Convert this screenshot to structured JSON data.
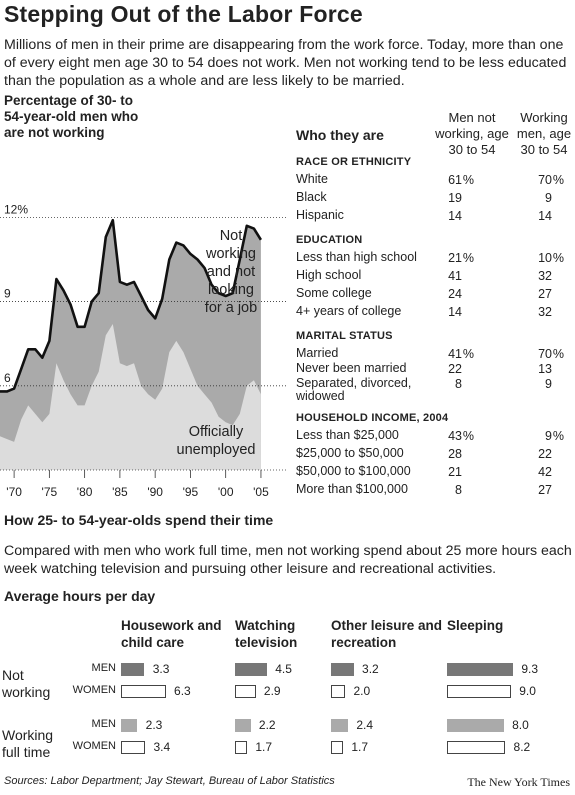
{
  "title": "Stepping Out of the Labor Force",
  "intro": "Millions of men in their prime are disappearing from the work force. Today, more than one of every eight men age 30 to 54 does not work. Men not working tend to be less educated than the population as a whole and are less likely to be married.",
  "chart_data": [
    {
      "type": "area",
      "title": "Percentage of 30- to 54-year-old men who are not working",
      "x_tick_labels": [
        "'70",
        "'75",
        "'80",
        "'85",
        "'90",
        "'95",
        "'00",
        "'05"
      ],
      "y_tick_labels": [
        "6",
        "9",
        "12%"
      ],
      "ylim": [
        3,
        14.4
      ],
      "xlim": [
        1968,
        2006
      ],
      "grid": "dotted horizontal",
      "x": [
        1968,
        1969,
        1970,
        1971,
        1972,
        1973,
        1974,
        1975,
        1976,
        1977,
        1978,
        1979,
        1980,
        1981,
        1982,
        1983,
        1984,
        1985,
        1986,
        1987,
        1988,
        1989,
        1990,
        1991,
        1992,
        1993,
        1994,
        1995,
        1996,
        1997,
        1998,
        1999,
        2000,
        2001,
        2002,
        2003,
        2004,
        2005
      ],
      "series": [
        {
          "name": "Not working and not looking for a job",
          "color": "#aaaaaa",
          "values": [
            5.8,
            5.8,
            5.9,
            6.6,
            7.3,
            7.3,
            7.0,
            7.6,
            9.8,
            9.4,
            8.9,
            8.1,
            8.1,
            9.0,
            9.3,
            11.3,
            11.9,
            9.7,
            9.6,
            9.7,
            9.2,
            8.7,
            8.4,
            9.1,
            10.5,
            11.1,
            11.0,
            10.7,
            10.5,
            10.2,
            9.6,
            9.3,
            9.2,
            9.3,
            10.5,
            11.7,
            11.6,
            11.2
          ]
        },
        {
          "name": "Officially unemployed",
          "color": "#dcdcdc",
          "values": [
            4.2,
            4.1,
            4.0,
            4.8,
            5.3,
            5.0,
            4.7,
            5.0,
            6.8,
            6.2,
            5.7,
            5.3,
            5.3,
            6.0,
            6.5,
            7.8,
            8.2,
            6.8,
            6.7,
            6.8,
            6.0,
            5.7,
            5.5,
            5.9,
            7.2,
            7.6,
            7.2,
            6.6,
            6.0,
            5.7,
            5.4,
            4.9,
            4.7,
            4.6,
            5.0,
            6.0,
            6.2,
            5.7
          ]
        }
      ],
      "area_labels": {
        "not_working": [
          "Not",
          "working",
          "and not",
          "looking",
          "for a job"
        ],
        "unemployed": [
          "Officially",
          "unemployed"
        ]
      }
    },
    {
      "type": "table",
      "title": "Who they are",
      "columns": [
        "Men not working, age 30 to 54",
        "Working men, age 30 to 54"
      ],
      "sections": [
        {
          "heading": "RACE OR ETHNICITY",
          "rows": [
            {
              "label": "White",
              "v1": "61",
              "p1": "%",
              "v2": "70",
              "p2": "%"
            },
            {
              "label": "Black",
              "v1": "19",
              "p1": "",
              "v2": "9",
              "p2": ""
            },
            {
              "label": "Hispanic",
              "v1": "14",
              "p1": "",
              "v2": "14",
              "p2": ""
            }
          ]
        },
        {
          "heading": "EDUCATION",
          "rows": [
            {
              "label": "Less than high school",
              "v1": "21",
              "p1": "%",
              "v2": "10",
              "p2": "%"
            },
            {
              "label": "High school",
              "v1": "41",
              "p1": "",
              "v2": "32",
              "p2": ""
            },
            {
              "label": "Some college",
              "v1": "24",
              "p1": "",
              "v2": "27",
              "p2": ""
            },
            {
              "label": "4+ years of college",
              "v1": "14",
              "p1": "",
              "v2": "32",
              "p2": ""
            }
          ]
        },
        {
          "heading": "MARITAL STATUS",
          "rows": [
            {
              "label": "Married",
              "v1": "41",
              "p1": "%",
              "v2": "70",
              "p2": "%"
            },
            {
              "label": "Never been married",
              "v1": "22",
              "p1": "",
              "v2": "13",
              "p2": ""
            },
            {
              "label": "Separated, divorced,",
              "label2": "widowed",
              "v1": "8",
              "p1": "",
              "v2": "9",
              "p2": ""
            }
          ]
        },
        {
          "heading": "HOUSEHOLD INCOME, 2004",
          "rows": [
            {
              "label": "Less than $25,000",
              "v1": "43",
              "p1": "%",
              "v2": "9",
              "p2": "%"
            },
            {
              "label": "$25,000 to $50,000",
              "v1": "28",
              "p1": "",
              "v2": "22",
              "p2": ""
            },
            {
              "label": "$50,000 to $100,000",
              "v1": "21",
              "p1": "",
              "v2": "42",
              "p2": ""
            },
            {
              "label": "More than $100,000",
              "v1": "8",
              "p1": "",
              "v2": "27",
              "p2": ""
            }
          ]
        }
      ]
    },
    {
      "type": "bar",
      "title": "Average hours per day",
      "categories": [
        "Housework and child care",
        "Watching television",
        "Other leisure and recreation",
        "Sleeping"
      ],
      "groups": [
        {
          "label": [
            "Not",
            "working"
          ],
          "series": [
            {
              "name": "MEN",
              "color": "#777777",
              "values": [
                3.3,
                4.5,
                3.2,
                9.3
              ]
            },
            {
              "name": "WOMEN",
              "color": "#ffffff",
              "values": [
                6.3,
                2.9,
                2.0,
                9.0
              ]
            }
          ]
        },
        {
          "label": [
            "Working",
            "full time"
          ],
          "series": [
            {
              "name": "MEN",
              "color": "#aaaaaa",
              "values": [
                2.3,
                2.2,
                2.4,
                8.0
              ]
            },
            {
              "name": "WOMEN",
              "color": "#ffffff",
              "values": [
                3.4,
                1.7,
                1.7,
                8.2
              ]
            }
          ]
        }
      ]
    }
  ],
  "time_section": {
    "heading": "How 25- to 54-year-olds spend their time",
    "description": "Compared with men who work full time, men not working spend about 25 more hours each week watching television and pursuing other leisure and recreational activities."
  },
  "footer": {
    "sources": "Sources: Labor Department; Jay Stewart, Bureau of Labor Statistics",
    "credit": "The New York Times"
  }
}
